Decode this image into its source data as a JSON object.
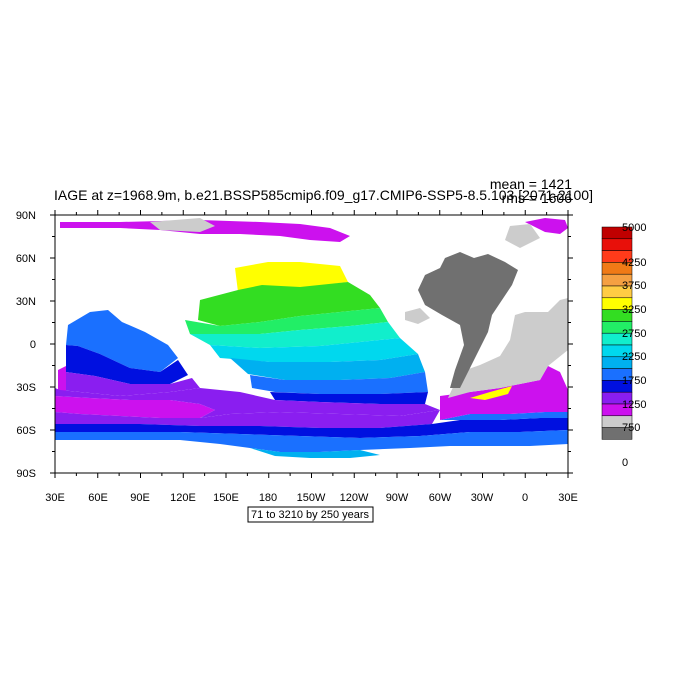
{
  "title": "IAGE at z=1968.9m, b.e21.BSSP585cmip6.f09_g17.CMIP6-SSP5-8.5.103 [2071-2100]",
  "stats": {
    "mean": "mean = 1421",
    "rms": "rms = 1606"
  },
  "map": {
    "lat_labels": [
      "90N",
      "60N",
      "30N",
      "0",
      "30S",
      "60S",
      "90S"
    ],
    "lon_labels": [
      "30E",
      "60E",
      "90E",
      "120E",
      "150E",
      "180",
      "150W",
      "120W",
      "90W",
      "60W",
      "30W",
      "0",
      "30E"
    ],
    "contour_info": "71 to 3210 by 250 years"
  },
  "colorbar": {
    "labels": [
      "5000",
      "4250",
      "3750",
      "3250",
      "2750",
      "2250",
      "1750",
      "1250",
      "750",
      "0"
    ],
    "colors": [
      "#c00000",
      "#e8100a",
      "#ff3b1a",
      "#f07a16",
      "#f5a042",
      "#ffcc44",
      "#ffff00",
      "#33dd22",
      "#22ee66",
      "#11eecc",
      "#00d8ee",
      "#00b0f0",
      "#1a70ff",
      "#0010e0",
      "#8a1ef0",
      "#cc11ee",
      "#cccccc",
      "#707070"
    ]
  },
  "colors": {
    "land": "#ffffff",
    "missing": "#cccccc",
    "zero": "#707070"
  }
}
